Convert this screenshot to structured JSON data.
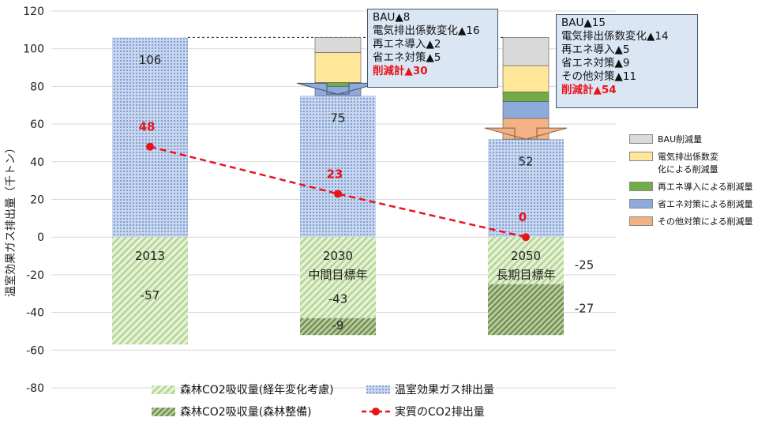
{
  "chart_data": {
    "type": "bar",
    "ylabel": "温室効果ガス排出量（千トン）",
    "ylim": [
      -80,
      120
    ],
    "yticks": [
      120,
      100,
      80,
      60,
      40,
      20,
      0,
      -20,
      -40,
      -60,
      -80
    ],
    "categories": [
      "2013",
      "2030\n中間目標年",
      "2050\n長期目標年"
    ],
    "category_labels": [
      [
        "2013"
      ],
      [
        "2030",
        "中間目標年"
      ],
      [
        "2050",
        "長期目標年"
      ]
    ],
    "series": [
      {
        "name": "温室効果ガス排出量",
        "values": [
          106,
          75,
          52
        ],
        "color": "#8fa8d6"
      },
      {
        "name": "森林CO2吸収量(経年変化考慮)",
        "values": [
          -57,
          -43,
          -25
        ],
        "color": "#b8d89a"
      },
      {
        "name": "森林CO2吸収量(森林整備)",
        "values": [
          0,
          -9,
          -27
        ],
        "color": "#6f8f4a"
      },
      {
        "name": "実質のCO2排出量",
        "values": [
          48,
          23,
          0
        ],
        "color": "#e8141c"
      }
    ],
    "value_labels": {
      "emissions": [
        "106",
        "75",
        "52"
      ],
      "absorption_aging": [
        "-57",
        "-43",
        "-25"
      ],
      "absorption_forest": [
        "-9",
        "-27"
      ],
      "net": [
        "48",
        "23",
        "0"
      ]
    },
    "reductions": {
      "2030": [
        {
          "label": "BAU削減量",
          "value": 8
        },
        {
          "label": "電気排出係数変化による削減量",
          "value": 16
        },
        {
          "label": "再エネ導入による削減量",
          "value": 2
        },
        {
          "label": "省エネ対策による削減量",
          "value": 5
        }
      ],
      "2050": [
        {
          "label": "BAU削減量",
          "value": 15
        },
        {
          "label": "電気排出係数変化による削減量",
          "value": 14
        },
        {
          "label": "再エネ導入による削減量",
          "value": 5
        },
        {
          "label": "省エネ対策による削減量",
          "value": 9
        },
        {
          "label": "その他対策による削減量",
          "value": 11
        }
      ]
    },
    "reduction_colors": {
      "BAU削減量": "#d9d9d9",
      "電気排出係数変化による削減量": "#ffe699",
      "再エネ導入による削減量": "#70ad47",
      "省エネ対策による削減量": "#8eaadb",
      "その他対策による削減量": "#f4b183"
    },
    "callouts": {
      "2030": [
        "BAU▲8",
        "電気排出係数変化▲16",
        "再エネ導入▲2",
        "省エネ対策▲5"
      ],
      "2030_total": "削減計▲30",
      "2050": [
        "BAU▲15",
        "電気排出係数変化▲14",
        "再エネ導入▲5",
        "省エネ対策▲9",
        "その他対策▲11"
      ],
      "2050_total": "削減計▲54"
    },
    "right_legend": [
      {
        "label": "BAU削減量",
        "color": "#d9d9d9"
      },
      {
        "label": "電気排出係数変化による削減量",
        "color": "#ffe699",
        "lines": [
          "電気排出係数変",
          "化による削減量"
        ]
      },
      {
        "label": "再エネ導入による削減量",
        "color": "#70ad47"
      },
      {
        "label": "省エネ対策による削減量",
        "color": "#8eaadb"
      },
      {
        "label": "その他対策による削減量",
        "color": "#f4b183"
      }
    ],
    "bottom_legend": [
      "森林CO2吸収量(経年変化考慮)",
      "温室効果ガス排出量",
      "森林CO2吸収量(森林整備)",
      "実質のCO2排出量"
    ]
  }
}
